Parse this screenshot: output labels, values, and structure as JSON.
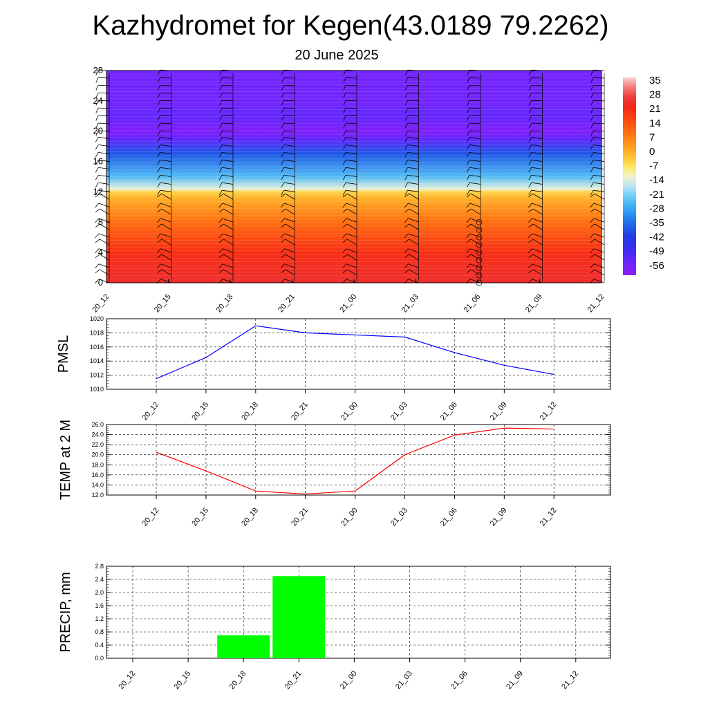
{
  "title": "Kazhydromet for Kegen(43.0189 79.2262)",
  "subtitle": "20 June 2025",
  "x_categories": [
    "20_12",
    "20_15",
    "20_18",
    "20_21",
    "21_00",
    "21_03",
    "21_06",
    "21_09",
    "21_12"
  ],
  "chart_data": [
    {
      "type": "heatmap",
      "description_key": "cross_section",
      "x": [
        "20_12",
        "20_15",
        "20_18",
        "20_21",
        "21_00",
        "21_03",
        "21_06",
        "21_09",
        "21_12"
      ],
      "y_ticks": [
        "0",
        "4",
        "8",
        "12",
        "16",
        "20",
        "24",
        "28"
      ],
      "ylim": [
        0,
        28
      ],
      "colorbar_labels": [
        "35",
        "28",
        "21",
        "14",
        "7",
        "0",
        "-7",
        "-14",
        "-21",
        "-28",
        "-35",
        "-42",
        "-49",
        "-56"
      ],
      "colorbar_range": [
        -63,
        42
      ],
      "level_profile": [
        {
          "level": 0,
          "value": 30
        },
        {
          "level": 4,
          "value": 24
        },
        {
          "level": 8,
          "value": 13
        },
        {
          "level": 11,
          "value": 3
        },
        {
          "level": 12,
          "value": -3
        },
        {
          "level": 12.4,
          "value": -12
        },
        {
          "level": 14,
          "value": -24
        },
        {
          "level": 17,
          "value": -38
        },
        {
          "level": 19,
          "value": -55
        },
        {
          "level": 20,
          "value": -61
        },
        {
          "level": 22,
          "value": -55
        },
        {
          "level": 24,
          "value": -58
        },
        {
          "level": 28,
          "value": -58
        }
      ],
      "grid": false
    },
    {
      "type": "line",
      "ylabel": "PMSL",
      "x": [
        "20_12",
        "20_15",
        "20_18",
        "20_21",
        "21_00",
        "21_03",
        "21_06",
        "21_09",
        "21_12"
      ],
      "series": [
        {
          "values": [
            1011.5,
            1014.5,
            1019.0,
            1018.0,
            1017.7,
            1017.4,
            1015.2,
            1013.4,
            1012.1
          ]
        }
      ],
      "y_ticks": [
        "1010",
        "1012",
        "1014",
        "1016",
        "1018",
        "1020"
      ],
      "ylim": [
        1010,
        1020
      ],
      "color": "#0000ff",
      "grid": true
    },
    {
      "type": "line",
      "ylabel": "TEMP at 2 M",
      "x": [
        "20_12",
        "20_15",
        "20_18",
        "20_21",
        "21_00",
        "21_03",
        "21_06",
        "21_09",
        "21_12"
      ],
      "series": [
        {
          "values": [
            20.5,
            16.8,
            12.8,
            12.2,
            12.8,
            20.0,
            23.9,
            25.3,
            25.1
          ]
        }
      ],
      "y_ticks": [
        "12.0",
        "14.0",
        "16.0",
        "18.0",
        "20.0",
        "22.0",
        "24.0",
        "26.0"
      ],
      "ylim": [
        12,
        26
      ],
      "color": "#ff0000",
      "grid": true
    },
    {
      "type": "bar",
      "ylabel": "PRECIP, mm",
      "categories": [
        "20_12",
        "20_15",
        "20_18",
        "20_21",
        "21_00",
        "21_03",
        "21_06",
        "21_09",
        "21_12"
      ],
      "values": [
        0,
        0,
        0.7,
        2.5,
        0,
        0,
        0,
        0,
        0
      ],
      "y_ticks": [
        "0.0",
        "0.4",
        "0.8",
        "1.2",
        "1.6",
        "2.0",
        "2.4",
        "2.8"
      ],
      "ylim": [
        0,
        2.8
      ],
      "color": "#00ff00",
      "grid": true
    }
  ]
}
